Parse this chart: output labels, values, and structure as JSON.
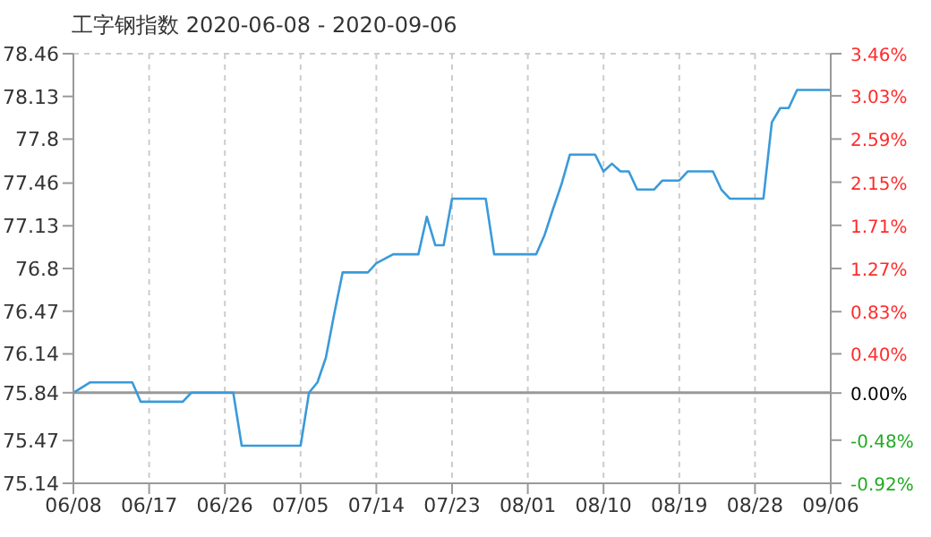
{
  "chart_data": {
    "type": "line",
    "title": "工字钢指数 2020-06-08 - 2020-09-06",
    "x": [
      "2020-06-08",
      "2020-06-10",
      "2020-06-15",
      "2020-06-16",
      "2020-06-21",
      "2020-06-22",
      "2020-06-27",
      "2020-06-28",
      "2020-07-05",
      "2020-07-06",
      "2020-07-07",
      "2020-07-08",
      "2020-07-09",
      "2020-07-10",
      "2020-07-13",
      "2020-07-14",
      "2020-07-16",
      "2020-07-19",
      "2020-07-20",
      "2020-07-21",
      "2020-07-22",
      "2020-07-23",
      "2020-07-27",
      "2020-07-28",
      "2020-08-02",
      "2020-08-03",
      "2020-08-04",
      "2020-08-05",
      "2020-08-06",
      "2020-08-09",
      "2020-08-10",
      "2020-08-11",
      "2020-08-12",
      "2020-08-13",
      "2020-08-14",
      "2020-08-16",
      "2020-08-17",
      "2020-08-19",
      "2020-08-20",
      "2020-08-23",
      "2020-08-24",
      "2020-08-25",
      "2020-08-29",
      "2020-08-30",
      "2020-08-31",
      "2020-09-01",
      "2020-09-02",
      "2020-09-06"
    ],
    "series": [
      {
        "color": "#3a9ad9",
        "values": [
          75.84,
          75.92,
          75.92,
          75.77,
          75.77,
          75.84,
          75.84,
          75.43,
          75.43,
          75.84,
          75.92,
          76.11,
          76.45,
          76.77,
          76.77,
          76.84,
          76.91,
          76.91,
          77.2,
          76.98,
          76.98,
          77.34,
          77.34,
          76.91,
          76.91,
          77.06,
          77.26,
          77.45,
          77.68,
          77.68,
          77.55,
          77.61,
          77.55,
          77.55,
          77.41,
          77.41,
          77.48,
          77.48,
          77.55,
          77.55,
          77.41,
          77.34,
          77.34,
          77.93,
          78.04,
          78.04,
          78.18,
          78.18
        ]
      }
    ],
    "xlim": [
      "2020-06-08",
      "2020-09-06"
    ],
    "xticks": [
      {
        "value": "2020-06-08",
        "label": "06/08"
      },
      {
        "value": "2020-06-17",
        "label": "06/17"
      },
      {
        "value": "2020-06-26",
        "label": "06/26"
      },
      {
        "value": "2020-07-05",
        "label": "07/05"
      },
      {
        "value": "2020-07-14",
        "label": "07/14"
      },
      {
        "value": "2020-07-23",
        "label": "07/23"
      },
      {
        "value": "2020-08-01",
        "label": "08/01"
      },
      {
        "value": "2020-08-10",
        "label": "08/10"
      },
      {
        "value": "2020-08-19",
        "label": "08/19"
      },
      {
        "value": "2020-08-28",
        "label": "08/28"
      },
      {
        "value": "2020-09-06",
        "label": "09/06"
      }
    ],
    "ylim": [
      75.14,
      78.46
    ],
    "yticks": [
      75.14,
      75.47,
      75.84,
      76.14,
      76.47,
      76.8,
      77.13,
      77.46,
      77.8,
      78.13,
      78.46
    ],
    "y2lim": [
      -0.92,
      3.46
    ],
    "y2ticks": [
      {
        "value": -0.92,
        "label": "-0.92%"
      },
      {
        "value": -0.48,
        "label": "-0.48%"
      },
      {
        "value": 0,
        "label": "0.00%"
      },
      {
        "value": 0.4,
        "label": "0.40%"
      },
      {
        "value": 0.83,
        "label": "0.83%"
      },
      {
        "value": 1.27,
        "label": "1.27%"
      },
      {
        "value": 1.71,
        "label": "1.71%"
      },
      {
        "value": 2.15,
        "label": "2.15%"
      },
      {
        "value": 2.59,
        "label": "2.59%"
      },
      {
        "value": 3.03,
        "label": "3.03%"
      },
      {
        "value": 3.46,
        "label": "3.46%"
      }
    ],
    "ref_lines": [
      {
        "axis": "y",
        "value": 75.84,
        "color": "#999999"
      }
    ],
    "grid": true,
    "line_style": "solid",
    "marker": "none"
  }
}
